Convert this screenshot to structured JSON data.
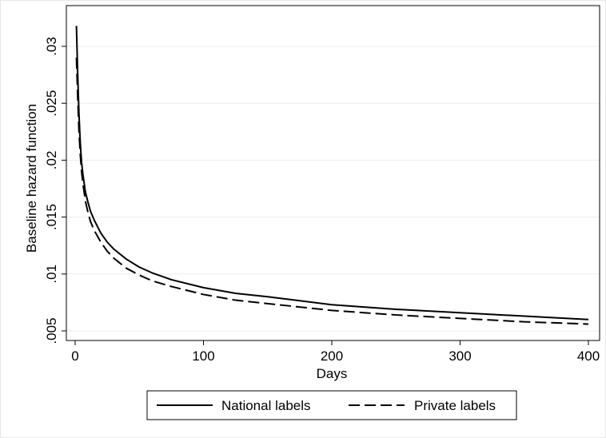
{
  "chart_data": {
    "type": "line",
    "title": "",
    "xlabel": "Days",
    "ylabel": "Baseline hazard function",
    "xlim": [
      0,
      400
    ],
    "ylim": [
      0.005,
      0.0325
    ],
    "xticks": [
      0,
      100,
      200,
      300,
      400
    ],
    "xtick_labels": [
      "0",
      "100",
      "200",
      "300",
      "400"
    ],
    "yticks": [
      0.005,
      0.01,
      0.015,
      0.02,
      0.025,
      0.03
    ],
    "ytick_labels": [
      ".005",
      ".01",
      ".015",
      ".02",
      ".025",
      ".03"
    ],
    "grid": "horizontal",
    "legend_position": "bottom",
    "series": [
      {
        "name": "National labels",
        "style": "solid",
        "color": "#000000",
        "x": [
          1,
          2,
          3,
          4,
          5,
          6,
          8,
          10,
          12,
          15,
          20,
          25,
          30,
          40,
          50,
          60,
          75,
          100,
          125,
          150,
          200,
          250,
          300,
          350,
          400
        ],
        "y": [
          0.0318,
          0.0275,
          0.024,
          0.0215,
          0.0198,
          0.0188,
          0.0172,
          0.0163,
          0.0155,
          0.0147,
          0.0136,
          0.0128,
          0.0122,
          0.0113,
          0.0106,
          0.0101,
          0.0095,
          0.0088,
          0.0083,
          0.008,
          0.0073,
          0.0069,
          0.0066,
          0.0063,
          0.006
        ]
      },
      {
        "name": "Private labels",
        "style": "dashed",
        "color": "#000000",
        "x": [
          1,
          2,
          3,
          4,
          5,
          6,
          8,
          10,
          12,
          15,
          20,
          25,
          30,
          40,
          50,
          60,
          75,
          100,
          125,
          150,
          200,
          250,
          300,
          350,
          400
        ],
        "y": [
          0.029,
          0.0255,
          0.0225,
          0.0205,
          0.019,
          0.018,
          0.0164,
          0.0154,
          0.0146,
          0.0138,
          0.0128,
          0.012,
          0.0114,
          0.0105,
          0.0099,
          0.0094,
          0.0089,
          0.0082,
          0.0077,
          0.0074,
          0.0068,
          0.0064,
          0.0061,
          0.0058,
          0.0056
        ]
      }
    ]
  }
}
